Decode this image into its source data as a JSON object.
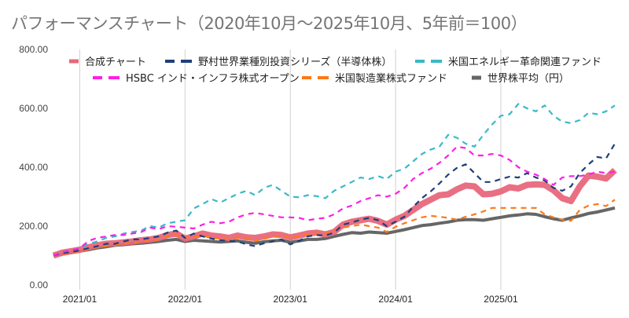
{
  "title": "パフォーマンスチャート（2020年10月〜2025年10月、5年前＝100）",
  "chart_data": {
    "type": "line",
    "title": "パフォーマンスチャート（2020年10月〜2025年10月、5年前＝100）",
    "xlabel": "",
    "ylabel": "",
    "ylim": [
      0,
      800
    ],
    "yticks": [
      "0.00",
      "200.00",
      "400.00",
      "600.00",
      "800.00"
    ],
    "ytick_values": [
      0,
      200,
      400,
      600,
      800
    ],
    "xticks": [
      "2021/01",
      "2022/01",
      "2023/01",
      "2024/01",
      "2025/01"
    ],
    "xtick_index": [
      3,
      15,
      27,
      39,
      51
    ],
    "x_start": "2020/10",
    "x_end": "2025/10",
    "grid": "vertical",
    "legend_position": "top",
    "series": [
      {
        "name": "合成チャート",
        "color": "#e8677b",
        "style": "solid-thick",
        "values": [
          100,
          110,
          115,
          120,
          128,
          135,
          140,
          142,
          145,
          148,
          152,
          155,
          160,
          170,
          175,
          158,
          165,
          175,
          168,
          165,
          160,
          168,
          162,
          160,
          165,
          172,
          170,
          162,
          168,
          175,
          178,
          172,
          180,
          205,
          215,
          220,
          225,
          218,
          205,
          222,
          235,
          255,
          275,
          290,
          305,
          308,
          325,
          338,
          335,
          308,
          310,
          318,
          332,
          328,
          340,
          342,
          340,
          322,
          295,
          285,
          335,
          372,
          368,
          362,
          390
        ]
      },
      {
        "name": "野村世界業種別投資シリーズ（半導体株）",
        "color": "#1f3f7a",
        "style": "dashed",
        "values": [
          100,
          108,
          112,
          118,
          125,
          132,
          140,
          140,
          148,
          155,
          155,
          160,
          165,
          178,
          185,
          160,
          175,
          165,
          158,
          152,
          150,
          148,
          138,
          132,
          142,
          148,
          155,
          138,
          150,
          165,
          170,
          168,
          178,
          205,
          212,
          222,
          228,
          220,
          200,
          215,
          232,
          265,
          295,
          318,
          345,
          375,
          398,
          410,
          380,
          350,
          350,
          360,
          368,
          365,
          380,
          365,
          355,
          330,
          320,
          335,
          380,
          410,
          435,
          430,
          480
        ]
      },
      {
        "name": "米国エネルギー革命関連ファンド",
        "color": "#3ab9c8",
        "style": "dashed",
        "values": [
          100,
          112,
          118,
          125,
          140,
          148,
          160,
          165,
          175,
          180,
          185,
          200,
          195,
          210,
          215,
          220,
          260,
          275,
          292,
          280,
          295,
          310,
          320,
          305,
          330,
          340,
          320,
          300,
          298,
          305,
          302,
          295,
          320,
          335,
          350,
          365,
          360,
          370,
          360,
          385,
          395,
          420,
          445,
          460,
          470,
          510,
          500,
          480,
          470,
          510,
          545,
          575,
          580,
          615,
          600,
          590,
          610,
          575,
          555,
          550,
          560,
          585,
          580,
          590,
          610
        ]
      },
      {
        "name": "HSBC インド・インフラ株式オープン",
        "color": "#ff1ee6",
        "style": "dashed",
        "values": [
          100,
          112,
          118,
          125,
          150,
          160,
          165,
          170,
          170,
          175,
          180,
          195,
          190,
          200,
          198,
          195,
          192,
          205,
          215,
          210,
          215,
          230,
          240,
          245,
          240,
          235,
          230,
          230,
          228,
          220,
          225,
          228,
          240,
          260,
          270,
          285,
          295,
          305,
          300,
          310,
          330,
          360,
          380,
          395,
          415,
          440,
          470,
          465,
          440,
          440,
          445,
          440,
          425,
          400,
          385,
          375,
          360,
          340,
          365,
          370,
          370,
          375,
          385,
          380,
          385
        ]
      },
      {
        "name": "米国製造業株式ファンド",
        "color": "#ff7814",
        "style": "dashed",
        "values": [
          100,
          105,
          110,
          115,
          122,
          128,
          132,
          138,
          140,
          145,
          148,
          150,
          155,
          165,
          170,
          160,
          165,
          168,
          160,
          158,
          155,
          162,
          158,
          150,
          158,
          165,
          168,
          160,
          165,
          172,
          175,
          175,
          185,
          195,
          200,
          205,
          200,
          195,
          180,
          198,
          210,
          220,
          230,
          235,
          232,
          228,
          222,
          232,
          240,
          250,
          262,
          262,
          262,
          262,
          262,
          262,
          240,
          230,
          222,
          218,
          255,
          270,
          275,
          268,
          290
        ]
      },
      {
        "name": "世界株平均（円）",
        "color": "#666666",
        "style": "solid",
        "values": [
          100,
          105,
          110,
          115,
          120,
          126,
          130,
          135,
          137,
          140,
          142,
          145,
          148,
          152,
          155,
          148,
          152,
          150,
          148,
          146,
          148,
          150,
          145,
          142,
          147,
          150,
          152,
          145,
          150,
          155,
          155,
          158,
          165,
          172,
          178,
          176,
          180,
          178,
          176,
          182,
          188,
          195,
          202,
          205,
          210,
          214,
          220,
          222,
          222,
          220,
          225,
          230,
          235,
          238,
          242,
          240,
          232,
          225,
          220,
          228,
          235,
          243,
          248,
          255,
          262
        ]
      }
    ]
  }
}
